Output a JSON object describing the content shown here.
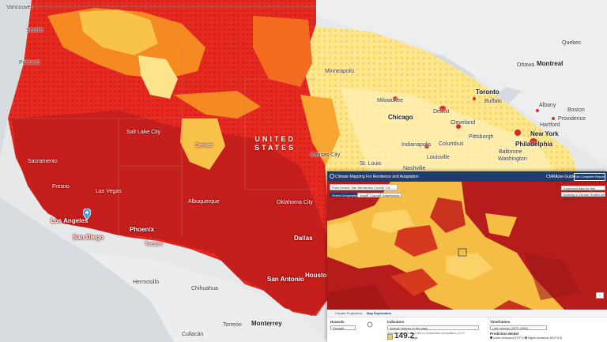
{
  "map": {
    "country_label": [
      "UNITED",
      "STATES"
    ],
    "cities": [
      {
        "name": "Vancouver"
      },
      {
        "name": "Seattle"
      },
      {
        "name": "Portland"
      },
      {
        "name": "Sacramento"
      },
      {
        "name": "Fresno"
      },
      {
        "name": "Las Vegas"
      },
      {
        "name": "Los Angeles"
      },
      {
        "name": "San Diego"
      },
      {
        "name": "Phoenix"
      },
      {
        "name": "Tucson"
      },
      {
        "name": "Salt Lake City"
      },
      {
        "name": "Denver"
      },
      {
        "name": "Albuquerque"
      },
      {
        "name": "Oklahoma City"
      },
      {
        "name": "Dallas"
      },
      {
        "name": "San Antonio"
      },
      {
        "name": "Houston"
      },
      {
        "name": "Kansas City"
      },
      {
        "name": "Minneapolis"
      },
      {
        "name": "Milwaukee"
      },
      {
        "name": "Chicago"
      },
      {
        "name": "Detroit"
      },
      {
        "name": "Cleveland"
      },
      {
        "name": "Indianapolis"
      },
      {
        "name": "Columbus"
      },
      {
        "name": "Pittsburgh"
      },
      {
        "name": "Louisville"
      },
      {
        "name": "St. Louis"
      },
      {
        "name": "Nashville"
      },
      {
        "name": "Toronto"
      },
      {
        "name": "Buffalo"
      },
      {
        "name": "Montreal"
      },
      {
        "name": "Ottawa"
      },
      {
        "name": "Quebec"
      },
      {
        "name": "Albany"
      },
      {
        "name": "Boston"
      },
      {
        "name": "Providence"
      },
      {
        "name": "Hartford"
      },
      {
        "name": "New York"
      },
      {
        "name": "Philadelphia"
      },
      {
        "name": "Baltimore"
      },
      {
        "name": "Washington"
      },
      {
        "name": "Hermosillo"
      },
      {
        "name": "Chihuahua"
      },
      {
        "name": "Torreón"
      },
      {
        "name": "Monterrey"
      },
      {
        "name": "Culiacán"
      }
    ]
  },
  "app": {
    "title": "Climate Mapping For Resilience and Adaptation",
    "nav": [
      "CMRA",
      "Use Guide"
    ],
    "cta": "Get Complete Report",
    "search_value": "Palm Desert, San Bernardino County, CA",
    "chips": [
      "Select Geography",
      "Tracts",
      "Counties",
      "Watersheds"
    ],
    "map_buttons": [
      "Download data for this location",
      "Building a Climate Resilience Plan"
    ],
    "tabs": [
      "Climate Projections",
      "Map Exploration"
    ],
    "hazards_label": "Hazards",
    "hazard_value": "Drought",
    "indicators_label": "Indicators",
    "indicator_value": "Annual number of dry days",
    "indicator_note": "Annual number of days with no measurable precipitation (<0.01 in).",
    "indicator_number": "149.2",
    "indicator_unit": "days",
    "timeframes_label": "Timeframes",
    "timeframe_value": "Late century (2070-2099)",
    "model_label": "Prediction Model",
    "model_options": [
      "Lower emissions (RCP 4.5)",
      "Higher emissions (RCP 8.5)"
    ]
  },
  "colors": {
    "dark_red": "#b71c1c",
    "red": "#e1251b",
    "orange": "#f0751f",
    "amber": "#f7b33b",
    "yellow": "#fde68c",
    "pale": "#fff3c4",
    "header_navy": "#1d3d6e"
  }
}
